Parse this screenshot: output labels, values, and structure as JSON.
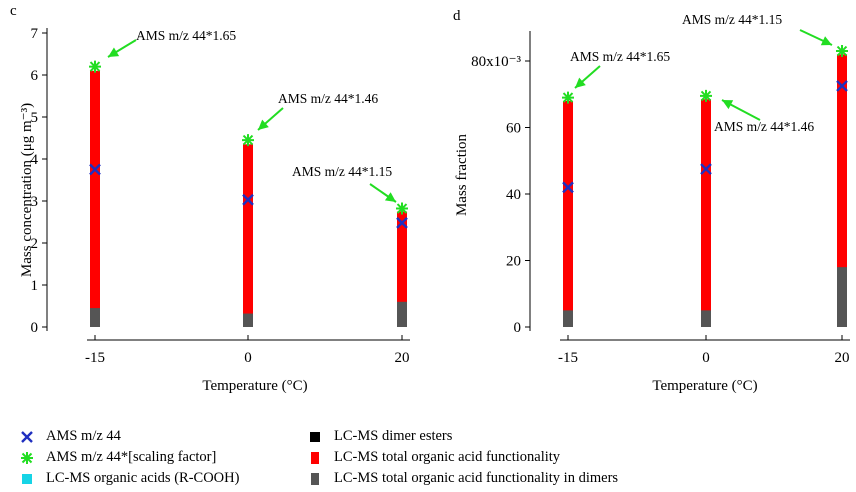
{
  "legend": {
    "items": [
      {
        "label": "AMS m/z 44",
        "symbol": "x-marker-icon",
        "color": "#1f2fbf"
      },
      {
        "label": "AMS m/z 44*[scaling factor]",
        "symbol": "asterisk-marker-icon",
        "color": "#22dd22"
      },
      {
        "label": "LC-MS organic acids (R-COOH)",
        "symbol": "square-icon",
        "color": "#16d4e6"
      },
      {
        "label": "LC-MS dimer esters",
        "symbol": "square-icon",
        "color": "#000000"
      },
      {
        "label": "LC-MS total organic acid functionality",
        "symbol": "bar-icon",
        "color": "#ff0000"
      },
      {
        "label": "LC-MS total organic acid functionality in dimers",
        "symbol": "bar-icon",
        "color": "#555555"
      }
    ]
  },
  "colors": {
    "total": "#ff0000",
    "dimers": "#555555",
    "ams": "#1f2fbf",
    "scaled": "#22dd22"
  },
  "chart_data": [
    {
      "panel_label": "c",
      "type": "bar",
      "ylabel": "Mass concentration (μg m⁻³)",
      "xlabel": "Temperature (°C)",
      "categories": [
        -15,
        0,
        20
      ],
      "xtick_labels": [
        "-15",
        "0",
        "20"
      ],
      "ylim": [
        0,
        7
      ],
      "ytick_labels": [
        "0",
        "1",
        "2",
        "3",
        "4",
        "5",
        "6",
        "7"
      ],
      "series": [
        {
          "name": "LC-MS total organic acid functionality",
          "kind": "bar",
          "values": [
            6.1,
            4.35,
            2.75
          ]
        },
        {
          "name": "LC-MS total organic acid functionality in dimers",
          "kind": "bar",
          "values": [
            0.45,
            0.32,
            0.6
          ]
        },
        {
          "name": "AMS m/z 44",
          "kind": "marker",
          "values": [
            3.75,
            3.03,
            2.48
          ]
        },
        {
          "name": "AMS m/z 44*[scaling factor]",
          "kind": "marker",
          "values": [
            6.2,
            4.45,
            2.82
          ]
        }
      ],
      "annotations": [
        "AMS m/z 44*1.65",
        "AMS m/z 44*1.46",
        "AMS m/z 44*1.15"
      ]
    },
    {
      "panel_label": "d",
      "type": "bar",
      "ylabel": "Mass fraction",
      "xlabel": "Temperature (°C)",
      "categories": [
        -15,
        0,
        20
      ],
      "xtick_labels": [
        "-15",
        "0",
        "20"
      ],
      "ylim": [
        0,
        88
      ],
      "ytick_labels": [
        "0",
        "20",
        "40",
        "60",
        "80x10⁻³"
      ],
      "series": [
        {
          "name": "LC-MS total organic acid functionality",
          "kind": "bar",
          "values": [
            68,
            68.5,
            82
          ]
        },
        {
          "name": "LC-MS total organic acid functionality in dimers",
          "kind": "bar",
          "values": [
            5,
            5,
            18
          ]
        },
        {
          "name": "AMS m/z 44",
          "kind": "marker",
          "values": [
            42,
            47.5,
            72.5
          ]
        },
        {
          "name": "AMS m/z 44*[scaling factor]",
          "kind": "marker",
          "values": [
            69,
            69.5,
            83
          ]
        }
      ],
      "annotations": [
        "AMS m/z 44*1.65",
        "AMS m/z 44*1.46",
        "AMS m/z 44*1.15"
      ]
    }
  ]
}
